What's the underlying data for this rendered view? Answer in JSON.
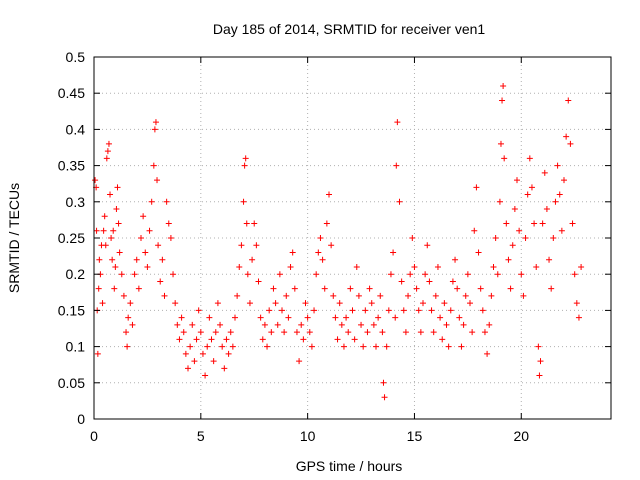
{
  "chart_data": {
    "type": "scatter",
    "title": "Day 185 of 2014, SRMTID for receiver ven1",
    "xlabel": "GPS time / hours",
    "ylabel": "SRMTID / TECUs",
    "xlim": [
      0,
      24.2
    ],
    "ylim": [
      0,
      0.5
    ],
    "x_ticks": [
      0,
      5,
      10,
      15,
      20
    ],
    "x_tick_labels": [
      "0",
      "5",
      "10",
      "15",
      "20"
    ],
    "y_ticks": [
      0,
      0.05,
      0.1,
      0.15,
      0.2,
      0.25,
      0.3,
      0.35,
      0.4,
      0.45,
      0.5
    ],
    "y_tick_labels": [
      "0",
      "0.05",
      "0.1",
      "0.15",
      "0.2",
      "0.25",
      "0.3",
      "0.35",
      "0.4",
      "0.45",
      "0.5"
    ],
    "grid": true,
    "marker": "+",
    "color": "#ff0000",
    "series": [
      {
        "name": "SRMTID",
        "points": [
          [
            0.05,
            0.33
          ],
          [
            0.1,
            0.32
          ],
          [
            0.12,
            0.26
          ],
          [
            0.15,
            0.15
          ],
          [
            0.18,
            0.09
          ],
          [
            0.22,
            0.18
          ],
          [
            0.25,
            0.22
          ],
          [
            0.3,
            0.2
          ],
          [
            0.35,
            0.24
          ],
          [
            0.4,
            0.16
          ],
          [
            0.45,
            0.26
          ],
          [
            0.5,
            0.28
          ],
          [
            0.55,
            0.24
          ],
          [
            0.6,
            0.36
          ],
          [
            0.65,
            0.37
          ],
          [
            0.7,
            0.38
          ],
          [
            0.75,
            0.31
          ],
          [
            0.8,
            0.25
          ],
          [
            0.85,
            0.22
          ],
          [
            0.9,
            0.26
          ],
          [
            0.95,
            0.18
          ],
          [
            1.0,
            0.21
          ],
          [
            1.05,
            0.29
          ],
          [
            1.1,
            0.32
          ],
          [
            1.15,
            0.27
          ],
          [
            1.2,
            0.23
          ],
          [
            1.3,
            0.2
          ],
          [
            1.4,
            0.17
          ],
          [
            1.5,
            0.12
          ],
          [
            1.55,
            0.1
          ],
          [
            1.6,
            0.14
          ],
          [
            1.7,
            0.16
          ],
          [
            1.8,
            0.13
          ],
          [
            1.9,
            0.2
          ],
          [
            2.0,
            0.22
          ],
          [
            2.1,
            0.18
          ],
          [
            2.2,
            0.25
          ],
          [
            2.3,
            0.28
          ],
          [
            2.4,
            0.23
          ],
          [
            2.5,
            0.21
          ],
          [
            2.6,
            0.26
          ],
          [
            2.7,
            0.3
          ],
          [
            2.8,
            0.35
          ],
          [
            2.85,
            0.4
          ],
          [
            2.9,
            0.41
          ],
          [
            2.95,
            0.33
          ],
          [
            3.0,
            0.24
          ],
          [
            3.1,
            0.19
          ],
          [
            3.2,
            0.22
          ],
          [
            3.3,
            0.17
          ],
          [
            3.4,
            0.3
          ],
          [
            3.5,
            0.27
          ],
          [
            3.6,
            0.25
          ],
          [
            3.7,
            0.2
          ],
          [
            3.8,
            0.16
          ],
          [
            3.9,
            0.13
          ],
          [
            4.0,
            0.11
          ],
          [
            4.1,
            0.14
          ],
          [
            4.2,
            0.12
          ],
          [
            4.3,
            0.09
          ],
          [
            4.4,
            0.07
          ],
          [
            4.5,
            0.1
          ],
          [
            4.6,
            0.13
          ],
          [
            4.7,
            0.08
          ],
          [
            4.8,
            0.11
          ],
          [
            4.9,
            0.15
          ],
          [
            5.0,
            0.12
          ],
          [
            5.1,
            0.09
          ],
          [
            5.2,
            0.06
          ],
          [
            5.3,
            0.1
          ],
          [
            5.4,
            0.14
          ],
          [
            5.5,
            0.11
          ],
          [
            5.6,
            0.08
          ],
          [
            5.7,
            0.12
          ],
          [
            5.8,
            0.16
          ],
          [
            5.9,
            0.13
          ],
          [
            6.0,
            0.1
          ],
          [
            6.1,
            0.07
          ],
          [
            6.2,
            0.11
          ],
          [
            6.3,
            0.09
          ],
          [
            6.4,
            0.12
          ],
          [
            6.5,
            0.1
          ],
          [
            6.6,
            0.14
          ],
          [
            6.7,
            0.17
          ],
          [
            6.8,
            0.21
          ],
          [
            6.9,
            0.24
          ],
          [
            7.0,
            0.3
          ],
          [
            7.05,
            0.35
          ],
          [
            7.1,
            0.36
          ],
          [
            7.15,
            0.27
          ],
          [
            7.2,
            0.2
          ],
          [
            7.3,
            0.16
          ],
          [
            7.4,
            0.22
          ],
          [
            7.5,
            0.27
          ],
          [
            7.6,
            0.24
          ],
          [
            7.7,
            0.19
          ],
          [
            7.8,
            0.14
          ],
          [
            7.9,
            0.11
          ],
          [
            8.0,
            0.13
          ],
          [
            8.1,
            0.1
          ],
          [
            8.2,
            0.15
          ],
          [
            8.3,
            0.12
          ],
          [
            8.4,
            0.18
          ],
          [
            8.5,
            0.16
          ],
          [
            8.6,
            0.13
          ],
          [
            8.7,
            0.2
          ],
          [
            8.8,
            0.15
          ],
          [
            8.9,
            0.12
          ],
          [
            9.0,
            0.17
          ],
          [
            9.1,
            0.14
          ],
          [
            9.2,
            0.21
          ],
          [
            9.3,
            0.23
          ],
          [
            9.4,
            0.18
          ],
          [
            9.5,
            0.12
          ],
          [
            9.6,
            0.08
          ],
          [
            9.7,
            0.13
          ],
          [
            9.8,
            0.11
          ],
          [
            9.9,
            0.16
          ],
          [
            10.0,
            0.14
          ],
          [
            10.1,
            0.12
          ],
          [
            10.2,
            0.1
          ],
          [
            10.3,
            0.15
          ],
          [
            10.4,
            0.2
          ],
          [
            10.5,
            0.23
          ],
          [
            10.6,
            0.25
          ],
          [
            10.7,
            0.22
          ],
          [
            10.8,
            0.18
          ],
          [
            10.9,
            0.27
          ],
          [
            11.0,
            0.31
          ],
          [
            11.1,
            0.24
          ],
          [
            11.2,
            0.17
          ],
          [
            11.3,
            0.14
          ],
          [
            11.4,
            0.11
          ],
          [
            11.5,
            0.16
          ],
          [
            11.6,
            0.13
          ],
          [
            11.7,
            0.1
          ],
          [
            11.8,
            0.14
          ],
          [
            11.9,
            0.12
          ],
          [
            12.0,
            0.18
          ],
          [
            12.1,
            0.15
          ],
          [
            12.2,
            0.11
          ],
          [
            12.3,
            0.21
          ],
          [
            12.4,
            0.17
          ],
          [
            12.5,
            0.13
          ],
          [
            12.6,
            0.1
          ],
          [
            12.7,
            0.15
          ],
          [
            12.8,
            0.12
          ],
          [
            12.9,
            0.18
          ],
          [
            13.0,
            0.16
          ],
          [
            13.1,
            0.13
          ],
          [
            13.2,
            0.1
          ],
          [
            13.3,
            0.14
          ],
          [
            13.4,
            0.17
          ],
          [
            13.5,
            0.12
          ],
          [
            13.55,
            0.05
          ],
          [
            13.6,
            0.03
          ],
          [
            13.7,
            0.1
          ],
          [
            13.8,
            0.15
          ],
          [
            13.9,
            0.2
          ],
          [
            14.0,
            0.23
          ],
          [
            14.1,
            0.14
          ],
          [
            14.15,
            0.35
          ],
          [
            14.2,
            0.41
          ],
          [
            14.3,
            0.3
          ],
          [
            14.4,
            0.19
          ],
          [
            14.5,
            0.15
          ],
          [
            14.6,
            0.12
          ],
          [
            14.7,
            0.17
          ],
          [
            14.8,
            0.2
          ],
          [
            14.9,
            0.25
          ],
          [
            15.0,
            0.21
          ],
          [
            15.1,
            0.18
          ],
          [
            15.2,
            0.15
          ],
          [
            15.3,
            0.12
          ],
          [
            15.4,
            0.16
          ],
          [
            15.5,
            0.2
          ],
          [
            15.6,
            0.24
          ],
          [
            15.7,
            0.19
          ],
          [
            15.8,
            0.15
          ],
          [
            15.9,
            0.12
          ],
          [
            16.0,
            0.17
          ],
          [
            16.1,
            0.21
          ],
          [
            16.2,
            0.14
          ],
          [
            16.3,
            0.11
          ],
          [
            16.4,
            0.16
          ],
          [
            16.5,
            0.13
          ],
          [
            16.6,
            0.1
          ],
          [
            16.7,
            0.15
          ],
          [
            16.8,
            0.19
          ],
          [
            16.9,
            0.22
          ],
          [
            17.0,
            0.18
          ],
          [
            17.1,
            0.14
          ],
          [
            17.2,
            0.1
          ],
          [
            17.3,
            0.13
          ],
          [
            17.4,
            0.17
          ],
          [
            17.5,
            0.2
          ],
          [
            17.6,
            0.16
          ],
          [
            17.7,
            0.12
          ],
          [
            17.8,
            0.26
          ],
          [
            17.9,
            0.32
          ],
          [
            18.0,
            0.23
          ],
          [
            18.1,
            0.18
          ],
          [
            18.2,
            0.15
          ],
          [
            18.3,
            0.12
          ],
          [
            18.4,
            0.09
          ],
          [
            18.5,
            0.13
          ],
          [
            18.6,
            0.17
          ],
          [
            18.7,
            0.21
          ],
          [
            18.8,
            0.25
          ],
          [
            18.9,
            0.2
          ],
          [
            19.0,
            0.3
          ],
          [
            19.05,
            0.38
          ],
          [
            19.1,
            0.44
          ],
          [
            19.15,
            0.46
          ],
          [
            19.2,
            0.36
          ],
          [
            19.3,
            0.27
          ],
          [
            19.4,
            0.22
          ],
          [
            19.5,
            0.18
          ],
          [
            19.6,
            0.24
          ],
          [
            19.7,
            0.29
          ],
          [
            19.8,
            0.33
          ],
          [
            19.9,
            0.26
          ],
          [
            20.0,
            0.2
          ],
          [
            20.1,
            0.17
          ],
          [
            20.2,
            0.25
          ],
          [
            20.3,
            0.31
          ],
          [
            20.4,
            0.36
          ],
          [
            20.5,
            0.32
          ],
          [
            20.6,
            0.27
          ],
          [
            20.7,
            0.21
          ],
          [
            20.8,
            0.1
          ],
          [
            20.85,
            0.06
          ],
          [
            20.9,
            0.08
          ],
          [
            21.0,
            0.27
          ],
          [
            21.1,
            0.34
          ],
          [
            21.2,
            0.29
          ],
          [
            21.3,
            0.22
          ],
          [
            21.4,
            0.18
          ],
          [
            21.5,
            0.25
          ],
          [
            21.6,
            0.3
          ],
          [
            21.7,
            0.35
          ],
          [
            21.8,
            0.31
          ],
          [
            21.9,
            0.26
          ],
          [
            22.0,
            0.33
          ],
          [
            22.1,
            0.39
          ],
          [
            22.2,
            0.44
          ],
          [
            22.3,
            0.38
          ],
          [
            22.4,
            0.27
          ],
          [
            22.5,
            0.2
          ],
          [
            22.6,
            0.16
          ],
          [
            22.7,
            0.14
          ],
          [
            22.8,
            0.21
          ]
        ]
      }
    ]
  }
}
